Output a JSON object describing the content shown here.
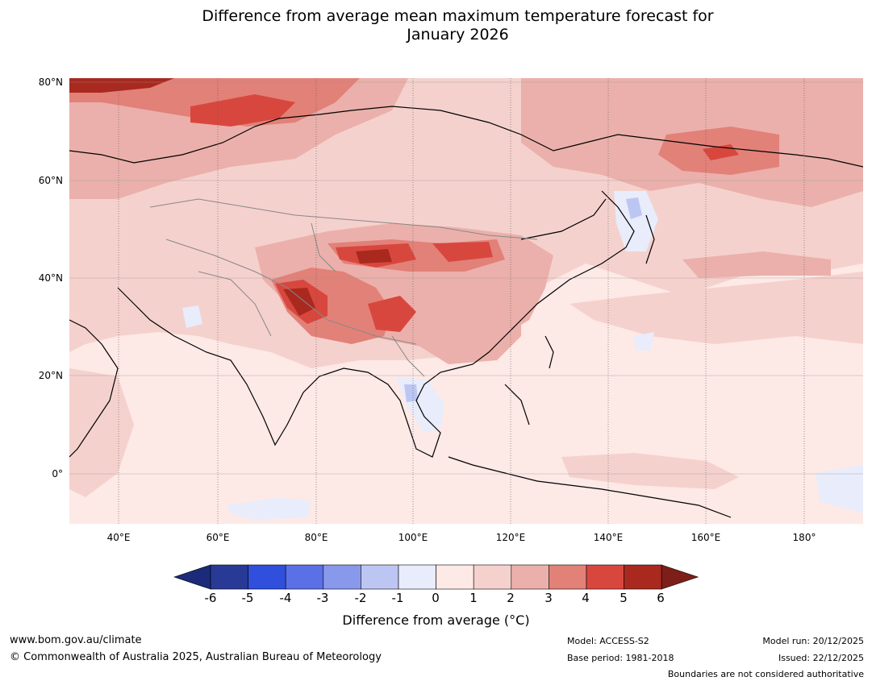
{
  "title": {
    "line1": "Difference from average mean maximum temperature forecast for",
    "line2": "January 2026"
  },
  "map": {
    "lat_labels": [
      "80°N",
      "60°N",
      "40°N",
      "20°N",
      "0°"
    ],
    "lon_labels": [
      "40°E",
      "60°E",
      "80°E",
      "100°E",
      "120°E",
      "140°E",
      "160°E",
      "180°"
    ],
    "lat_range": [
      -10,
      80
    ],
    "lon_range": [
      30,
      190
    ]
  },
  "colorbar": {
    "ticks": [
      "-6",
      "-5",
      "-4",
      "-3",
      "-2",
      "-1",
      "0",
      "1",
      "2",
      "3",
      "4",
      "5",
      "6"
    ],
    "colors": [
      "#283a96",
      "#2f4fdc",
      "#5b70e6",
      "#8898ea",
      "#bdc6f3",
      "#e8ecfb",
      "#fde9e6",
      "#f5d1cd",
      "#ebb0ab",
      "#e28178",
      "#d8473e",
      "#a9291f"
    ],
    "under_color": "#1b2b7a",
    "over_color": "#7d1e18",
    "label": "Difference from average (°C)"
  },
  "footer": {
    "url": "www.bom.gov.au/climate",
    "copyright": "© Commonwealth of Australia 2025, Australian Bureau of Meteorology",
    "model": "Model: ACCESS-S2",
    "base_period": "Base period: 1981-2018",
    "model_run": "Model run: 20/12/2025",
    "issued": "Issued: 22/12/2025",
    "disclaimer": "Boundaries are not considered authoritative"
  }
}
